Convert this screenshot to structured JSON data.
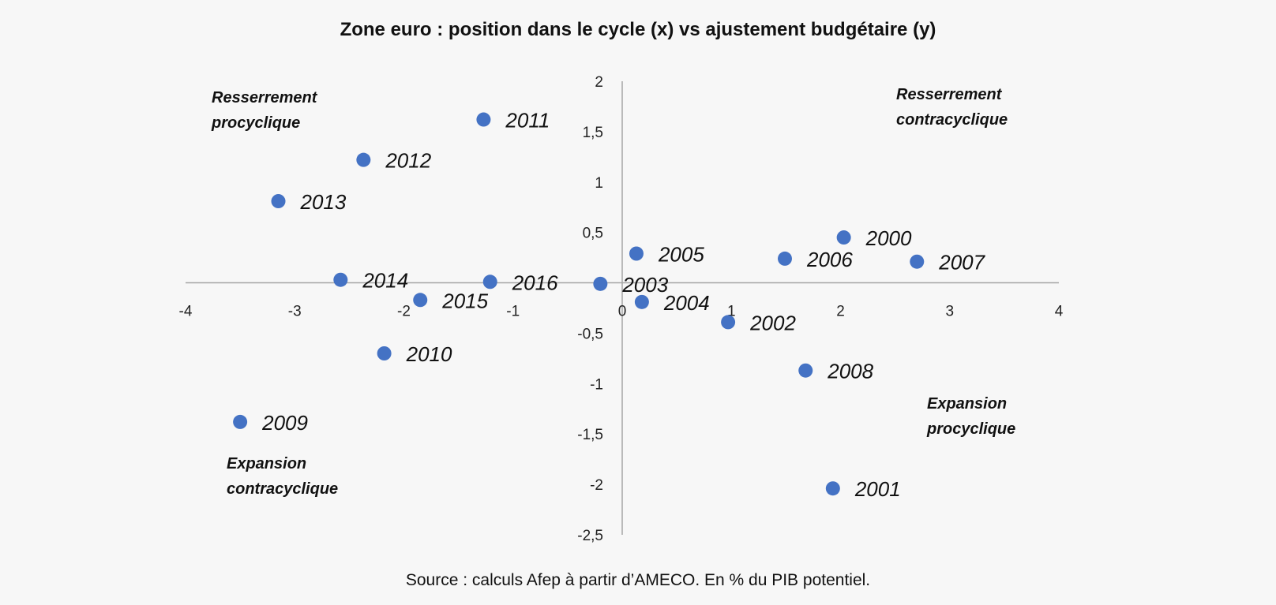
{
  "chart_data": {
    "type": "scatter",
    "title": "Zone euro : position dans le cycle (x) vs ajustement budgétaire (y)",
    "source": "Source : calculs Afep à partir d’AMECO. En % du PIB potentiel.",
    "xlim": [
      -4,
      4
    ],
    "ylim": [
      -2.5,
      2
    ],
    "x_ticks": [
      "-4",
      "-3",
      "-2",
      "-1",
      "0",
      "1",
      "2",
      "3",
      "4"
    ],
    "y_ticks": [
      "2",
      "1,5",
      "1",
      "0,5",
      "0",
      "-0,5",
      "-1",
      "-1,5",
      "-2",
      "-2,5"
    ],
    "grid": false,
    "marker_color": "#4472c4",
    "points": [
      {
        "label": "2000",
        "x": 2.03,
        "y": 0.45
      },
      {
        "label": "2001",
        "x": 1.93,
        "y": -2.04
      },
      {
        "label": "2002",
        "x": 0.97,
        "y": -0.39
      },
      {
        "label": "2003",
        "x": -0.2,
        "y": -0.01
      },
      {
        "label": "2004",
        "x": 0.18,
        "y": -0.19
      },
      {
        "label": "2005",
        "x": 0.13,
        "y": 0.29
      },
      {
        "label": "2006",
        "x": 1.49,
        "y": 0.24
      },
      {
        "label": "2007",
        "x": 2.7,
        "y": 0.21
      },
      {
        "label": "2008",
        "x": 1.68,
        "y": -0.87
      },
      {
        "label": "2009",
        "x": -3.5,
        "y": -1.38
      },
      {
        "label": "2010",
        "x": -2.18,
        "y": -0.7
      },
      {
        "label": "2011",
        "x": -1.27,
        "y": 1.62
      },
      {
        "label": "2012",
        "x": -2.37,
        "y": 1.22
      },
      {
        "label": "2013",
        "x": -3.15,
        "y": 0.81
      },
      {
        "label": "2014",
        "x": -2.58,
        "y": 0.03
      },
      {
        "label": "2015",
        "x": -1.85,
        "y": -0.17
      },
      {
        "label": "2016",
        "x": -1.21,
        "y": 0.01
      }
    ],
    "annotations": [
      {
        "lines": [
          "Resserrement",
          "procyclique"
        ],
        "position": "top-left"
      },
      {
        "lines": [
          "Resserrement",
          "contracyclique"
        ],
        "position": "top-right"
      },
      {
        "lines": [
          "Expansion",
          "procyclique"
        ],
        "position": "bottom-right"
      },
      {
        "lines": [
          "Expansion",
          "contracyclique"
        ],
        "position": "bottom-left"
      }
    ]
  }
}
